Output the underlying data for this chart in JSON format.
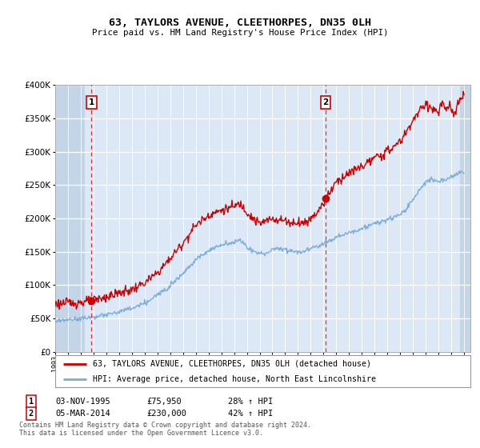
{
  "title": "63, TAYLORS AVENUE, CLEETHORPES, DN35 0LH",
  "subtitle": "Price paid vs. HM Land Registry's House Price Index (HPI)",
  "sale1_date": "03-NOV-1995",
  "sale1_price": 75950,
  "sale1_hpi_pct": "28% ↑ HPI",
  "sale1_label": "1",
  "sale2_date": "05-MAR-2014",
  "sale2_price": 230000,
  "sale2_hpi_pct": "42% ↑ HPI",
  "sale2_label": "2",
  "legend_line1": "63, TAYLORS AVENUE, CLEETHORPES, DN35 0LH (detached house)",
  "legend_line2": "HPI: Average price, detached house, North East Lincolnshire",
  "footnote1": "Contains HM Land Registry data © Crown copyright and database right 2024.",
  "footnote2": "This data is licensed under the Open Government Licence v3.0.",
  "plot_bg": "#dce8f5",
  "hatch_bg": "#c5d5e8",
  "red_line_color": "#cc0000",
  "blue_line_color": "#7aadda",
  "marker_color": "#cc0000",
  "dashed_line_color": "#dd3333",
  "ylim_min": 0,
  "ylim_max": 400000,
  "xmin": 1993.0,
  "xmax": 2025.5,
  "hatch_left_end": 1995.3,
  "hatch_right_start": 2024.7,
  "sale1_x": 1995.84,
  "sale2_x": 2014.17,
  "red_anchors": [
    [
      1993.0,
      72000
    ],
    [
      1994.0,
      73000
    ],
    [
      1995.0,
      74000
    ],
    [
      1995.84,
      75950
    ],
    [
      1996.0,
      77000
    ],
    [
      1997.0,
      82000
    ],
    [
      1998.0,
      88000
    ],
    [
      1999.0,
      93000
    ],
    [
      2000.0,
      103000
    ],
    [
      2001.0,
      118000
    ],
    [
      2002.0,
      140000
    ],
    [
      2003.0,
      163000
    ],
    [
      2004.0,
      190000
    ],
    [
      2005.0,
      205000
    ],
    [
      2006.0,
      212000
    ],
    [
      2007.0,
      218000
    ],
    [
      2007.5,
      222000
    ],
    [
      2008.0,
      210000
    ],
    [
      2008.5,
      200000
    ],
    [
      2009.0,
      192000
    ],
    [
      2009.5,
      196000
    ],
    [
      2010.0,
      200000
    ],
    [
      2010.5,
      198000
    ],
    [
      2011.0,
      197000
    ],
    [
      2011.5,
      193000
    ],
    [
      2012.0,
      195000
    ],
    [
      2012.5,
      193000
    ],
    [
      2013.0,
      200000
    ],
    [
      2013.5,
      210000
    ],
    [
      2014.0,
      222000
    ],
    [
      2014.17,
      230000
    ],
    [
      2014.5,
      240000
    ],
    [
      2015.0,
      255000
    ],
    [
      2016.0,
      268000
    ],
    [
      2017.0,
      278000
    ],
    [
      2018.0,
      290000
    ],
    [
      2019.0,
      300000
    ],
    [
      2020.0,
      315000
    ],
    [
      2020.5,
      330000
    ],
    [
      2021.0,
      348000
    ],
    [
      2021.5,
      360000
    ],
    [
      2022.0,
      372000
    ],
    [
      2022.5,
      365000
    ],
    [
      2023.0,
      358000
    ],
    [
      2023.3,
      375000
    ],
    [
      2023.6,
      360000
    ],
    [
      2023.9,
      370000
    ],
    [
      2024.2,
      355000
    ],
    [
      2024.5,
      368000
    ],
    [
      2024.8,
      380000
    ],
    [
      2025.0,
      390000
    ]
  ],
  "blue_anchors": [
    [
      1993.0,
      45000
    ],
    [
      1994.0,
      48000
    ],
    [
      1995.0,
      50000
    ],
    [
      1996.0,
      52000
    ],
    [
      1997.0,
      55000
    ],
    [
      1998.0,
      60000
    ],
    [
      1999.0,
      65000
    ],
    [
      2000.0,
      72000
    ],
    [
      2001.0,
      85000
    ],
    [
      2002.0,
      100000
    ],
    [
      2003.0,
      118000
    ],
    [
      2004.0,
      138000
    ],
    [
      2005.0,
      152000
    ],
    [
      2006.0,
      160000
    ],
    [
      2007.0,
      165000
    ],
    [
      2007.5,
      167000
    ],
    [
      2008.0,
      158000
    ],
    [
      2008.5,
      150000
    ],
    [
      2009.0,
      147000
    ],
    [
      2009.5,
      148000
    ],
    [
      2010.0,
      153000
    ],
    [
      2010.5,
      155000
    ],
    [
      2011.0,
      154000
    ],
    [
      2011.5,
      151000
    ],
    [
      2012.0,
      150000
    ],
    [
      2012.5,
      151000
    ],
    [
      2013.0,
      155000
    ],
    [
      2013.5,
      158000
    ],
    [
      2014.0,
      163000
    ],
    [
      2014.5,
      167000
    ],
    [
      2015.0,
      172000
    ],
    [
      2016.0,
      178000
    ],
    [
      2017.0,
      185000
    ],
    [
      2018.0,
      192000
    ],
    [
      2019.0,
      198000
    ],
    [
      2020.0,
      205000
    ],
    [
      2020.5,
      215000
    ],
    [
      2021.0,
      228000
    ],
    [
      2021.5,
      242000
    ],
    [
      2022.0,
      255000
    ],
    [
      2022.5,
      258000
    ],
    [
      2023.0,
      255000
    ],
    [
      2023.5,
      258000
    ],
    [
      2024.0,
      263000
    ],
    [
      2024.5,
      267000
    ],
    [
      2025.0,
      270000
    ]
  ]
}
